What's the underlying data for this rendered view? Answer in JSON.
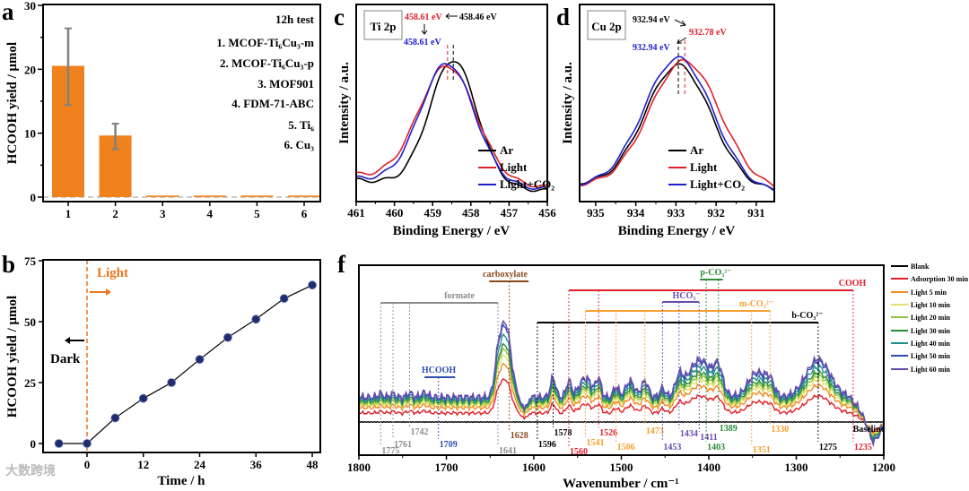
{
  "panel_labels": {
    "a": "a",
    "b": "b",
    "c": "c",
    "d": "d",
    "f": "f"
  },
  "watermark": "大数跨境",
  "chart_data": [
    {
      "panel": "a",
      "type": "bar",
      "categories": [
        "1",
        "2",
        "3",
        "4",
        "5",
        "6"
      ],
      "values": [
        20.4,
        9.5,
        0.1,
        0.1,
        0.1,
        0.1
      ],
      "errors": [
        6.0,
        2.0,
        0,
        0,
        0,
        0
      ],
      "ylim": [
        0,
        30
      ],
      "yticks": [
        0,
        10,
        20,
        30
      ],
      "xlabel": "",
      "ylabel": "HCOOH yield / μmol",
      "bar_color": "#F0821E",
      "error_color": "#808080",
      "legend_title": "12h test",
      "legend_items": [
        "1. MCOF-Ti₆Cu₃-m",
        "2. MCOF-Ti₆Cu₃-p",
        "3. MOF901",
        "4. FDM-71-ABC",
        "5. Ti₆",
        "6. Cu₃"
      ]
    },
    {
      "panel": "b",
      "type": "line",
      "x": [
        -6,
        0,
        6,
        12,
        18,
        24,
        30,
        36,
        42,
        48
      ],
      "y": [
        0,
        0,
        10.5,
        18.5,
        25,
        34.5,
        43.5,
        51,
        59.5,
        65
      ],
      "xticks": [
        0,
        12,
        24,
        36,
        48
      ],
      "yticks": [
        0,
        25,
        50,
        75
      ],
      "xlim": [
        -9,
        50
      ],
      "ylim": [
        -4,
        75
      ],
      "xlabel": "Time / h",
      "ylabel": "HCOOH yield / μmol",
      "marker_color": "#1F2D6E",
      "light_on_time": 0,
      "annotations": {
        "light": "Light",
        "dark": "Dark"
      },
      "accent_color": "#E87722"
    },
    {
      "panel": "c",
      "type": "line",
      "title": "Ti 2p",
      "xlabel": "Binding Energy / eV",
      "ylabel": "Intensity / a.u.",
      "xlim": [
        461,
        456
      ],
      "xticks": [
        461,
        460,
        459,
        458,
        457,
        456
      ],
      "series": [
        {
          "name": "Ar",
          "color": "#000000",
          "peak": 458.46,
          "height": 0.7,
          "sigma": 0.62,
          "base": [
            0.12,
            0.06
          ]
        },
        {
          "name": "Light",
          "color": "#E0202A",
          "peak": 458.61,
          "height": 0.64,
          "sigma": 0.74,
          "base": [
            0.15,
            0.08
          ]
        },
        {
          "name": "Light+CO₂",
          "color": "#1F1FD0",
          "peak": 458.61,
          "height": 0.67,
          "sigma": 0.7,
          "base": [
            0.13,
            0.07
          ]
        }
      ],
      "annotations": [
        {
          "text": "458.61 eV",
          "color": "#E0202A"
        },
        {
          "text": "458.46 eV",
          "color": "#000000"
        },
        {
          "text": "458.61 eV",
          "color": "#1F1FD0"
        }
      ]
    },
    {
      "panel": "d",
      "type": "line",
      "title": "Cu 2p",
      "xlabel": "Binding Energy / eV",
      "ylabel": "Intensity / a.u.",
      "xlim": [
        935.4,
        930.55
      ],
      "xticks": [
        935,
        934,
        933,
        932,
        931
      ],
      "series": [
        {
          "name": "Ar",
          "color": "#000000",
          "peak": 932.94,
          "height": 0.68,
          "sigma": 0.82,
          "base": [
            0.1,
            0.06
          ]
        },
        {
          "name": "Light",
          "color": "#E0202A",
          "peak": 932.78,
          "height": 0.71,
          "sigma": 0.88,
          "base": [
            0.09,
            0.06
          ]
        },
        {
          "name": "Light+CO₂",
          "color": "#1F1FD0",
          "peak": 932.94,
          "height": 0.73,
          "sigma": 0.86,
          "base": [
            0.09,
            0.05
          ]
        }
      ],
      "annotations": [
        {
          "text": "932.94 eV",
          "color": "#000000"
        },
        {
          "text": "932.78 eV",
          "color": "#E0202A"
        },
        {
          "text": "932.94 eV",
          "color": "#1F1FD0"
        }
      ]
    },
    {
      "panel": "f",
      "type": "line",
      "xlabel": "Wavenumber / cm⁻¹",
      "xlim": [
        1800,
        1200
      ],
      "xticks": [
        1800,
        1700,
        1600,
        1500,
        1400,
        1300,
        1200
      ],
      "series": [
        {
          "name": "Blank",
          "color": "#000000",
          "offset": 0,
          "scale": 0
        },
        {
          "name": "Adsorption 30 min",
          "color": "#E0202A",
          "offset": 0.1,
          "scale": 0.45
        },
        {
          "name": "Light 5 min",
          "color": "#F08A24",
          "offset": 0.16,
          "scale": 0.58
        },
        {
          "name": "Light 10 min",
          "color": "#E4E070",
          "offset": 0.19,
          "scale": 0.66
        },
        {
          "name": "Light 20 min",
          "color": "#8CC63F",
          "offset": 0.21,
          "scale": 0.72
        },
        {
          "name": "Light 30 min",
          "color": "#2E8B3A",
          "offset": 0.23,
          "scale": 0.76
        },
        {
          "name": "Light 40 min",
          "color": "#1F8F8F",
          "offset": 0.25,
          "scale": 0.86
        },
        {
          "name": "Light 50 min",
          "color": "#2F4FB0",
          "offset": 0.27,
          "scale": 0.96
        },
        {
          "name": "Light 60 min",
          "color": "#6A4CB0",
          "offset": 0.28,
          "scale": 1.0
        }
      ],
      "bands": [
        [
          1632,
          0.8,
          6
        ],
        [
          1641,
          0.35,
          4
        ],
        [
          1578,
          0.22,
          3
        ],
        [
          1560,
          0.18,
          3
        ],
        [
          1541,
          0.22,
          7
        ],
        [
          1526,
          0.2,
          3
        ],
        [
          1506,
          0.12,
          3
        ],
        [
          1490,
          0.18,
          5
        ],
        [
          1473,
          0.18,
          4
        ],
        [
          1453,
          0.1,
          3
        ],
        [
          1434,
          0.18,
          4
        ],
        [
          1410,
          0.42,
          14
        ],
        [
          1389,
          0.25,
          5
        ],
        [
          1345,
          0.28,
          10
        ],
        [
          1330,
          0.15,
          5
        ],
        [
          1275,
          0.42,
          14
        ],
        [
          1212,
          -0.22,
          7
        ],
        [
          1725,
          0.05,
          4
        ],
        [
          1775,
          0.04,
          3
        ],
        [
          1761,
          0.04,
          3
        ],
        [
          1742,
          0.05,
          3
        ]
      ],
      "groups": [
        {
          "label": "formate",
          "color": "#8C8C8C",
          "from": 1775,
          "to": 1641
        },
        {
          "label": "carboxylate",
          "color": "#8B4A1E",
          "from": 1651,
          "to": 1606
        },
        {
          "label": "HCOOH",
          "color": "#2F4FB0",
          "from": 1725,
          "to": 1690
        },
        {
          "label": "COOH",
          "color": "#E0202A",
          "from": 1560,
          "to": 1235
        },
        {
          "label": "HCO₃⁻",
          "color": "#6A4CB0",
          "from": 1453,
          "to": 1411
        },
        {
          "label": "p-CO₃²⁻",
          "color": "#2E8B3A",
          "from": 1410,
          "to": 1384
        },
        {
          "label": "m-CO₃²⁻",
          "color": "#F5A030",
          "from": 1541,
          "to": 1330
        },
        {
          "label": "b-CO₃²⁻",
          "color": "#000000",
          "from": 1596,
          "to": 1275
        }
      ],
      "peak_labels": [
        {
          "w": 1775,
          "text": "1775",
          "group": 0
        },
        {
          "w": 1761,
          "text": "1761",
          "group": 0
        },
        {
          "w": 1742,
          "text": "1742",
          "group": 0
        },
        {
          "w": 1709,
          "text": "1709",
          "group": 2
        },
        {
          "w": 1641,
          "text": "1641",
          "group": 0
        },
        {
          "w": 1628,
          "text": "1628",
          "group": 1
        },
        {
          "w": 1596,
          "text": "1596",
          "group": 7
        },
        {
          "w": 1578,
          "text": "1578",
          "group": 7
        },
        {
          "w": 1560,
          "text": "1560",
          "group": 3
        },
        {
          "w": 1541,
          "text": "1541",
          "group": 6
        },
        {
          "w": 1526,
          "text": "1526",
          "group": 3
        },
        {
          "w": 1506,
          "text": "1506",
          "group": 6
        },
        {
          "w": 1473,
          "text": "1473",
          "group": 6
        },
        {
          "w": 1453,
          "text": "1453",
          "group": 4
        },
        {
          "w": 1434,
          "text": "1434",
          "group": 4
        },
        {
          "w": 1411,
          "text": "1411",
          "group": 4
        },
        {
          "w": 1403,
          "text": "1403",
          "group": 5
        },
        {
          "w": 1389,
          "text": "1389",
          "group": 5
        },
        {
          "w": 1351,
          "text": "1351",
          "group": 6
        },
        {
          "w": 1330,
          "text": "1330",
          "group": 6
        },
        {
          "w": 1275,
          "text": "1275",
          "group": 7
        },
        {
          "w": 1235,
          "text": "1235",
          "group": 3
        }
      ],
      "baseline_label": "Baseline"
    }
  ]
}
